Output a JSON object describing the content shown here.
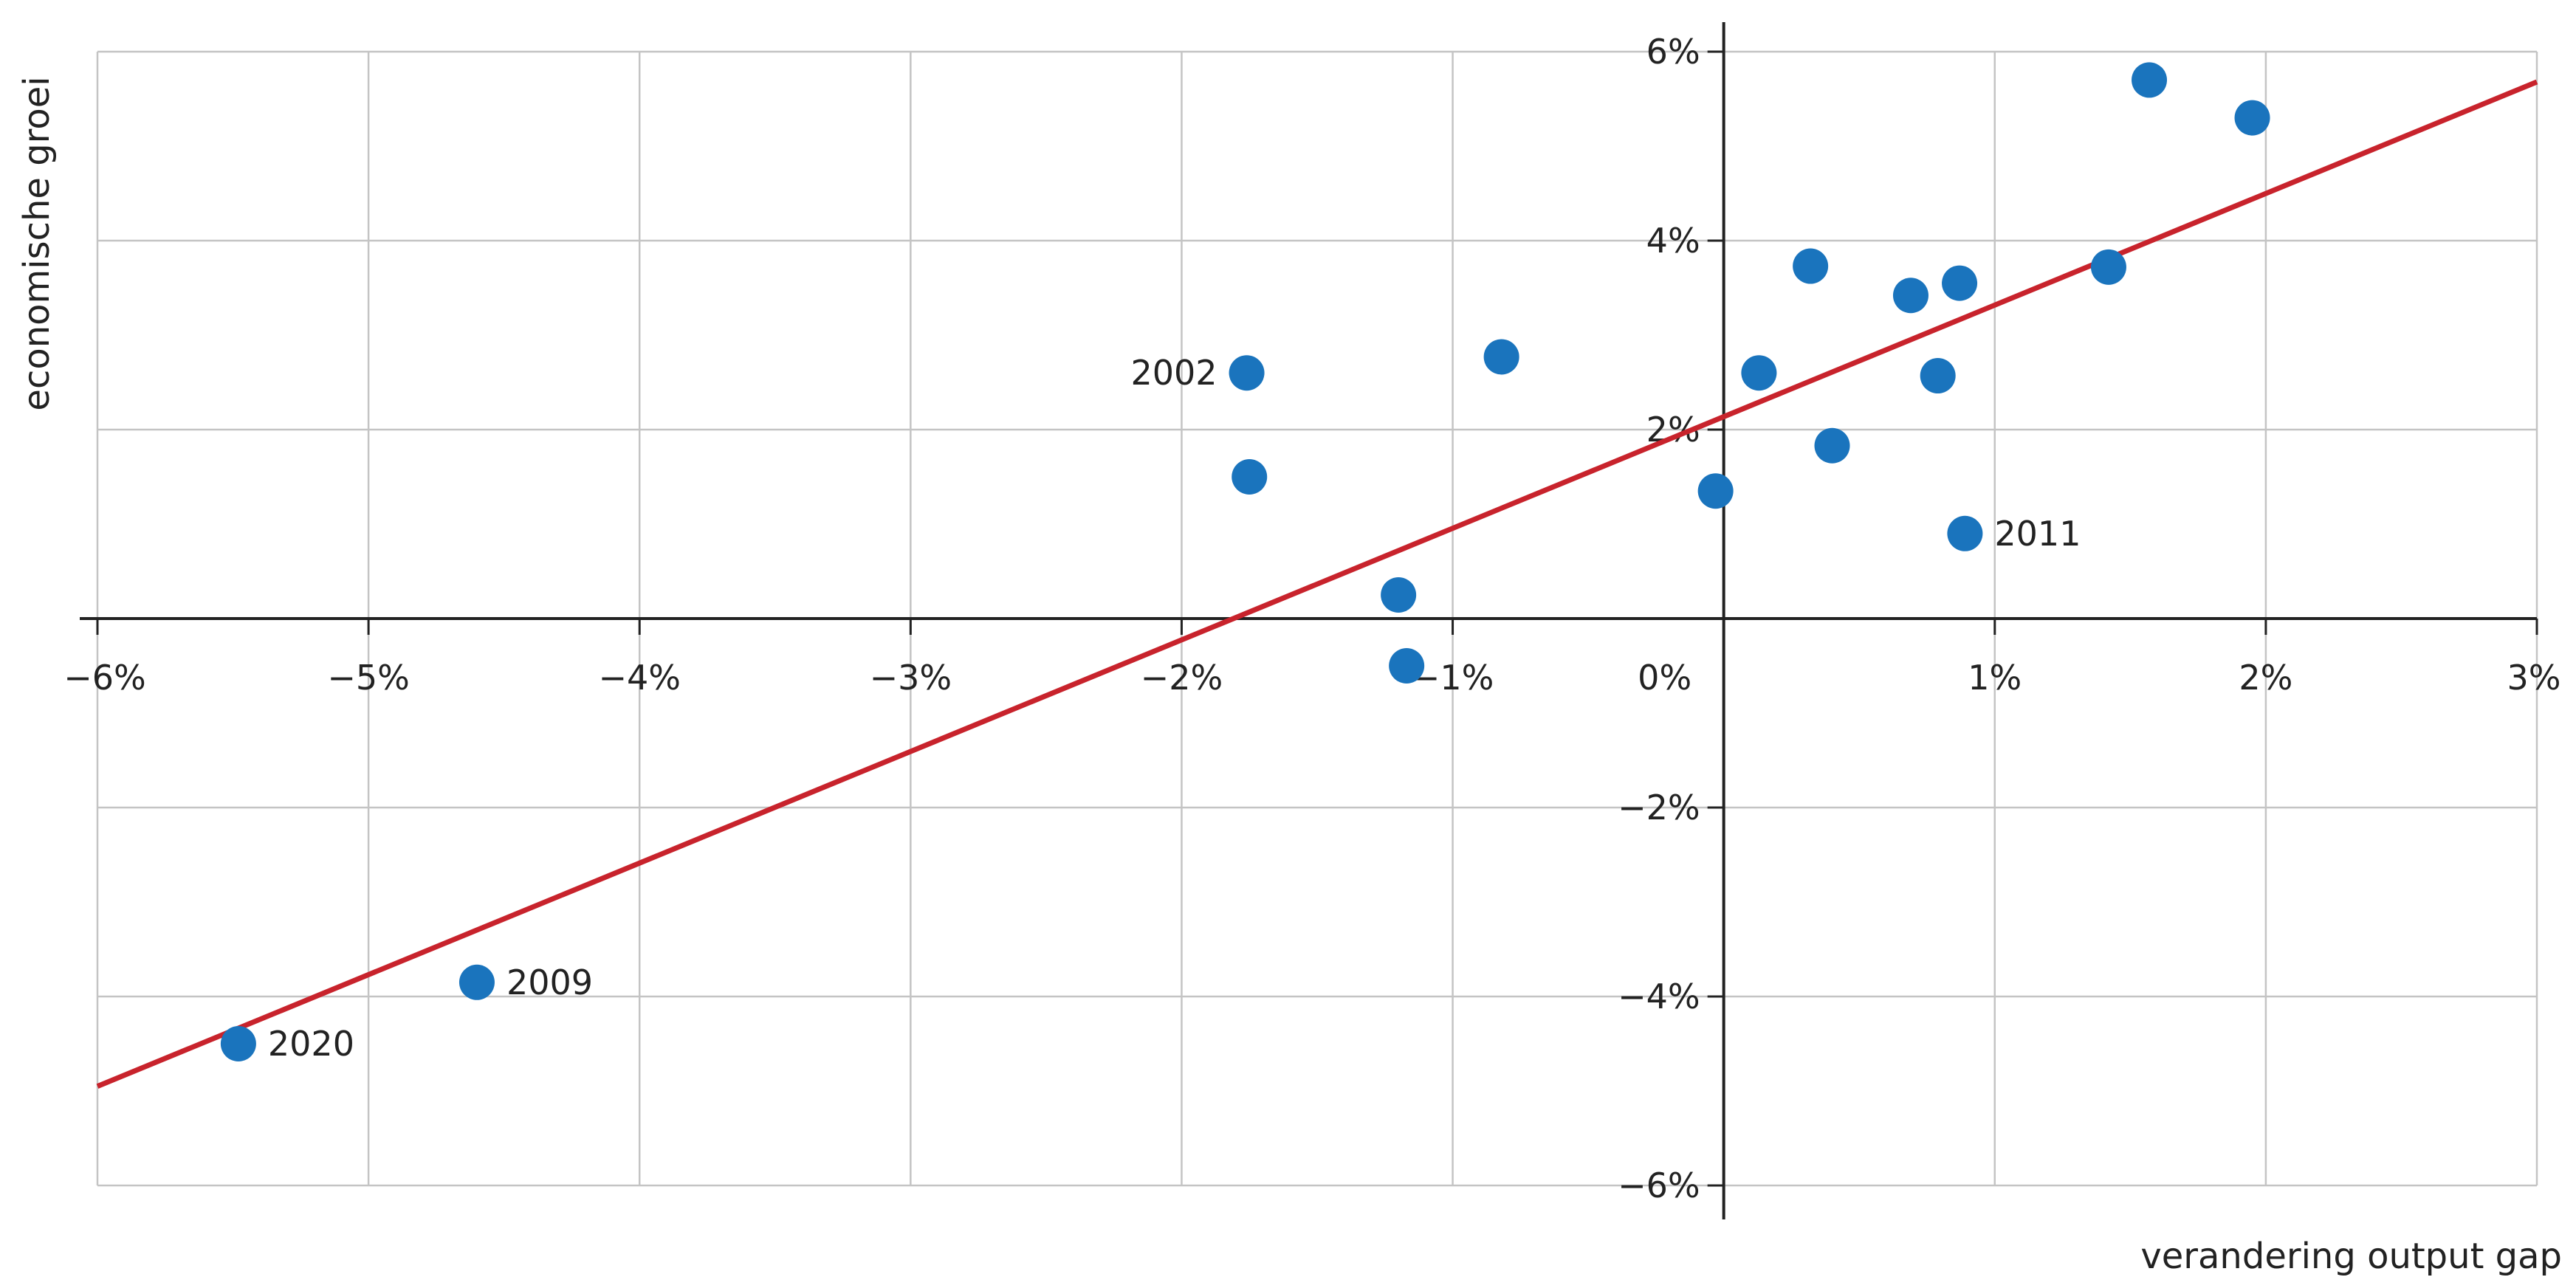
{
  "chart_data": {
    "type": "scatter",
    "title": "",
    "xlabel": "verandering output gap",
    "ylabel": "economische groei",
    "xlim": [
      -6,
      3
    ],
    "ylim": [
      -6,
      6
    ],
    "x_ticks": [
      {
        "value": -6,
        "label": "−6%"
      },
      {
        "value": -5,
        "label": "−5%"
      },
      {
        "value": -4,
        "label": "−4%"
      },
      {
        "value": -3,
        "label": "−3%"
      },
      {
        "value": -2,
        "label": "−2%"
      },
      {
        "value": -1,
        "label": "−1%"
      },
      {
        "value": 0,
        "label": "0%"
      },
      {
        "value": 1,
        "label": "1%"
      },
      {
        "value": 2,
        "label": "2%"
      },
      {
        "value": 3,
        "label": "3%"
      }
    ],
    "y_ticks": [
      {
        "value": 6,
        "label": "6%"
      },
      {
        "value": 4,
        "label": "4%"
      },
      {
        "value": 2,
        "label": "2%"
      },
      {
        "value": -2,
        "label": "−2%"
      },
      {
        "value": -4,
        "label": "−4%"
      },
      {
        "value": -6,
        "label": "−6%"
      }
    ],
    "grid": true,
    "point_color": "#1a74bd",
    "line_color": "#c8232c",
    "grid_color": "#c4c4c4",
    "axis_color": "#222222",
    "points": [
      {
        "x": -5.48,
        "y": -4.5,
        "label": "2020",
        "label_side": "right"
      },
      {
        "x": -4.6,
        "y": -3.85,
        "label": "2009",
        "label_side": "right"
      },
      {
        "x": -1.76,
        "y": 2.6,
        "label": "2002",
        "label_side": "left"
      },
      {
        "x": -1.75,
        "y": 1.5,
        "label": ""
      },
      {
        "x": -1.2,
        "y": 0.25,
        "label": ""
      },
      {
        "x": -1.17,
        "y": -0.5,
        "label": ""
      },
      {
        "x": -0.82,
        "y": 2.77,
        "label": ""
      },
      {
        "x": -0.03,
        "y": 1.35,
        "label": ""
      },
      {
        "x": 0.13,
        "y": 2.6,
        "label": ""
      },
      {
        "x": 0.32,
        "y": 3.73,
        "label": ""
      },
      {
        "x": 0.4,
        "y": 1.83,
        "label": ""
      },
      {
        "x": 0.69,
        "y": 3.42,
        "label": ""
      },
      {
        "x": 0.79,
        "y": 2.57,
        "label": ""
      },
      {
        "x": 0.87,
        "y": 3.55,
        "label": ""
      },
      {
        "x": 0.89,
        "y": 0.9,
        "label": "2011",
        "label_side": "right"
      },
      {
        "x": 1.42,
        "y": 3.72,
        "label": ""
      },
      {
        "x": 1.57,
        "y": 5.7,
        "label": ""
      },
      {
        "x": 1.95,
        "y": 5.3,
        "label": ""
      }
    ],
    "trendline": [
      {
        "x": -6,
        "y": -4.95
      },
      {
        "x": 3,
        "y": 5.68
      }
    ]
  }
}
